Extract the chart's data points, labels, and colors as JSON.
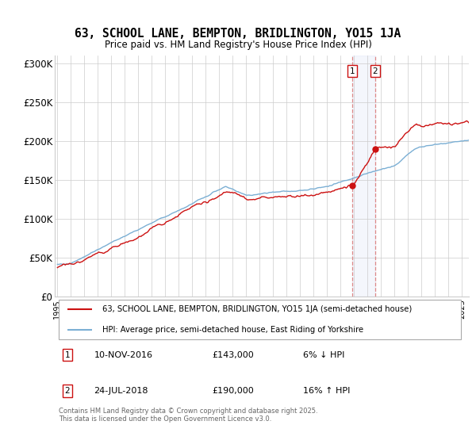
{
  "title": "63, SCHOOL LANE, BEMPTON, BRIDLINGTON, YO15 1JA",
  "subtitle": "Price paid vs. HM Land Registry's House Price Index (HPI)",
  "yticks": [
    0,
    50000,
    100000,
    150000,
    200000,
    250000,
    300000
  ],
  "ytick_labels": [
    "£0",
    "£50K",
    "£100K",
    "£150K",
    "£200K",
    "£250K",
    "£300K"
  ],
  "ylim": [
    0,
    310000
  ],
  "legend_line1": "63, SCHOOL LANE, BEMPTON, BRIDLINGTON, YO15 1JA (semi-detached house)",
  "legend_line2": "HPI: Average price, semi-detached house, East Riding of Yorkshire",
  "annotation1_date": "10-NOV-2016",
  "annotation1_price": "£143,000",
  "annotation1_hpi": "6% ↓ HPI",
  "annotation2_date": "24-JUL-2018",
  "annotation2_price": "£190,000",
  "annotation2_hpi": "16% ↑ HPI",
  "sale1_year": 2016.87,
  "sale1_price": 143000,
  "sale2_year": 2018.56,
  "sale2_price": 190000,
  "hpi_color": "#7bafd4",
  "property_color": "#cc1111",
  "vline_color": "#dd8888",
  "grid_color": "#cccccc",
  "background_color": "#ffffff",
  "footer": "Contains HM Land Registry data © Crown copyright and database right 2025.\nThis data is licensed under the Open Government Licence v3.0.",
  "year_start": 1995,
  "year_end": 2025
}
